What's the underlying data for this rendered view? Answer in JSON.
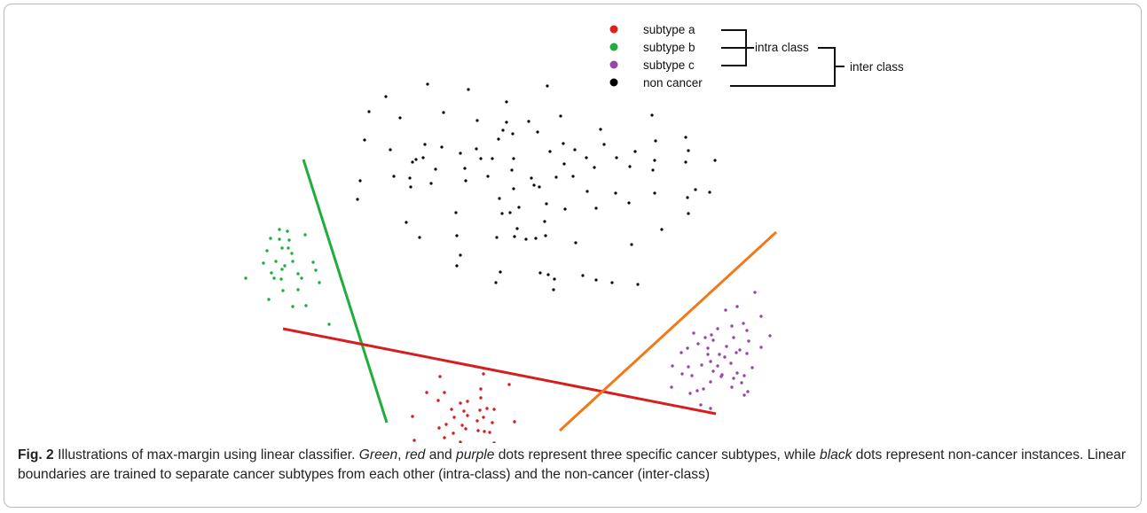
{
  "legend": {
    "items": [
      {
        "label": "subtype a",
        "color": "#e02020"
      },
      {
        "label": "subtype b",
        "color": "#1fae3c"
      },
      {
        "label": "subtype c",
        "color": "#9a45a8"
      },
      {
        "label": "non cancer",
        "color": "#000000"
      }
    ],
    "intra_label": "intra class",
    "inter_label": "inter class"
  },
  "colors": {
    "green": "#1fae3c",
    "red": "#d51f1f",
    "purple": "#9a45a8",
    "black": "#000000",
    "orange": "#f07a1a"
  },
  "caption": {
    "fig_label": "Fig. 2",
    "t1": " Illustrations of max-margin using linear classifier. ",
    "w_green": "Green",
    "t2": ", ",
    "w_red": "red",
    "t3": " and ",
    "w_purple": "purple",
    "t4": " dots represent three specific cancer subtypes, while ",
    "w_black": "black",
    "t5": " dots represent non-cancer instances. Linear boundaries are trained to separate cancer subtypes from each other (intra-class) and the non-cancer (inter-class)"
  }
}
